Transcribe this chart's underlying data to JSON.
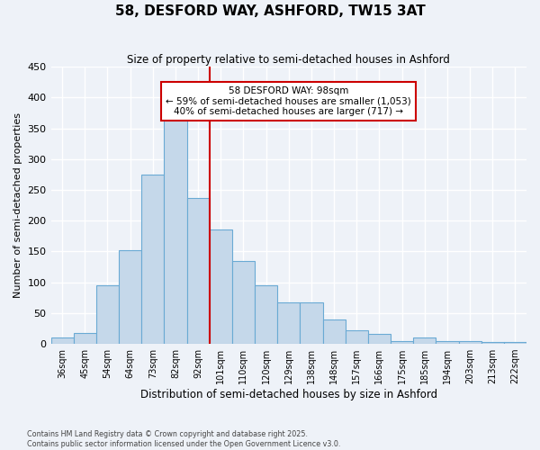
{
  "title": "58, DESFORD WAY, ASHFORD, TW15 3AT",
  "subtitle": "Size of property relative to semi-detached houses in Ashford",
  "xlabel": "Distribution of semi-detached houses by size in Ashford",
  "ylabel": "Number of semi-detached properties",
  "bin_labels": [
    "36sqm",
    "45sqm",
    "54sqm",
    "64sqm",
    "73sqm",
    "82sqm",
    "92sqm",
    "101sqm",
    "110sqm",
    "120sqm",
    "129sqm",
    "138sqm",
    "148sqm",
    "157sqm",
    "166sqm",
    "175sqm",
    "185sqm",
    "194sqm",
    "203sqm",
    "213sqm",
    "222sqm"
  ],
  "bar_values": [
    10,
    18,
    95,
    152,
    275,
    370,
    237,
    186,
    135,
    95,
    67,
    67,
    40,
    22,
    16,
    5,
    10,
    5,
    5,
    3,
    3
  ],
  "bar_color": "#c5d8ea",
  "bar_edge_color": "#6aaad4",
  "vline_x": 7,
  "vline_color": "#cc0000",
  "annotation_title": "58 DESFORD WAY: 98sqm",
  "annotation_line1": "← 59% of semi-detached houses are smaller (1,053)",
  "annotation_line2": "40% of semi-detached houses are larger (717) →",
  "annotation_box_color": "#ffffff",
  "annotation_box_edge": "#cc0000",
  "ylim": [
    0,
    450
  ],
  "yticks": [
    0,
    50,
    100,
    150,
    200,
    250,
    300,
    350,
    400,
    450
  ],
  "background_color": "#eef2f8",
  "grid_color": "#ffffff",
  "footnote1": "Contains HM Land Registry data © Crown copyright and database right 2025.",
  "footnote2": "Contains public sector information licensed under the Open Government Licence v3.0."
}
